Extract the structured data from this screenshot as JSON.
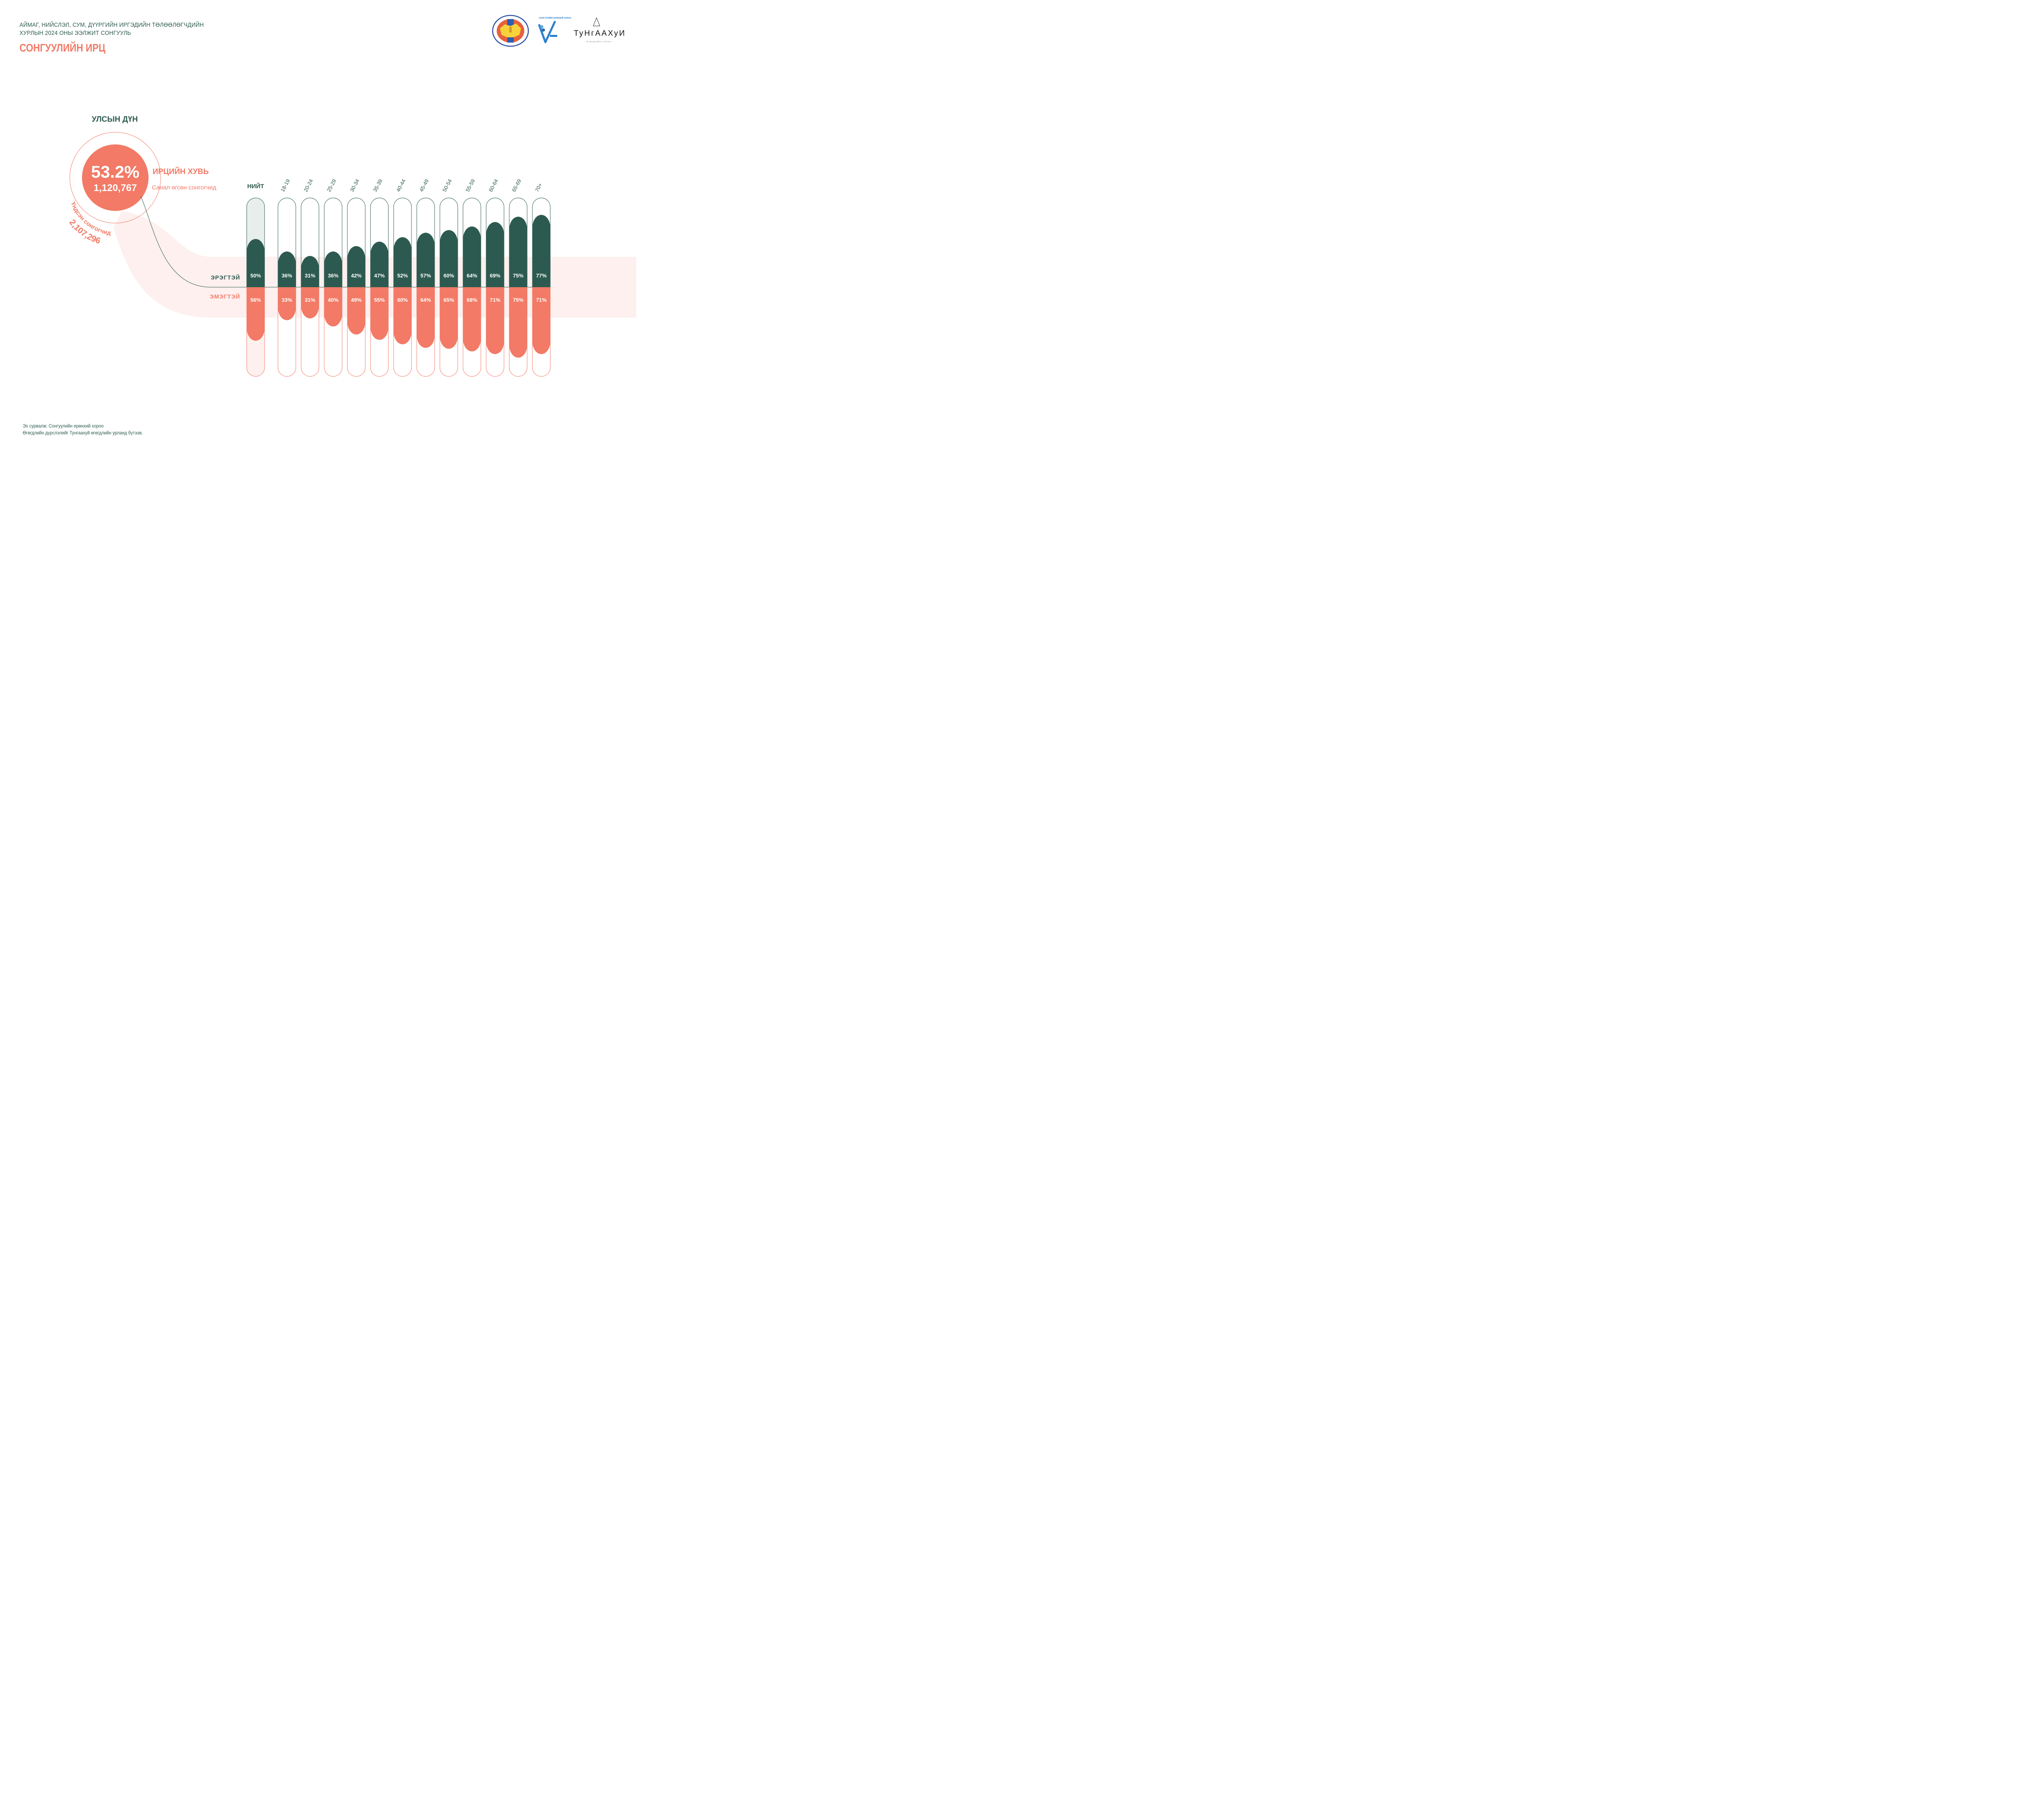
{
  "header": {
    "subtitle_line1": "АЙМАГ, НИЙСЛЭЛ, СУМ, ДҮҮРГИЙН ИРГЭДИЙН ТӨЛӨӨЛӨГЧДИЙН",
    "subtitle_line2": "ХУРЛЫН 2024 ОНЫ ЭЭЛЖИТ СОНГУУЛЬ",
    "title": "СОНГУУЛИЙН ИРЦ"
  },
  "logos": {
    "gec_seal": "general-election-commission-seal",
    "gec_seal_text_top": "СОНГУУЛИЙН ЕРӨНХИЙ ХОРОО",
    "gec_seal_text_bottom": "GENERAL ELECTION COMMISSION OF MONGOLIA",
    "center_title": "СОНГУУЛИЙН ЕРӨНХИЙ ХОРОО",
    "center_caption": "МЭДЭЭЛЭЛ, СУДАЛГАА, СУРГАЛТЫН ТӨВ",
    "tungaakhui_name": "ТуНгААХуИ",
    "tungaakhui_tagline": "- ӨГӨГДЛИЙН УРЛАН -"
  },
  "summary": {
    "section_title": "УЛСЫН ДҮН",
    "turnout_pct": "53.2%",
    "voters_cast": "1,120,767",
    "turnout_label": "ИРЦИЙН ХУВЬ",
    "voters_cast_label": "Санал өгсөн сонгогчид",
    "registered_label": "Үндсэн сонгогчид",
    "registered_voters": "2,107,296"
  },
  "colors": {
    "male": "#2d5a50",
    "female": "#f27a66",
    "band": "#fdf0ef",
    "total_track": "#e8eeec"
  },
  "chart_data": {
    "type": "bar",
    "title": "СОНГУУЛИЙН ИРЦ",
    "description": "Voter turnout by age group and sex (diverging bars from a shared baseline)",
    "row_labels": {
      "male": "ЭРЭГТЭЙ",
      "female": "ЭМЭГТЭЙ"
    },
    "categories": [
      "НИЙТ",
      "18-19",
      "20-24",
      "25-29",
      "30-34",
      "35-39",
      "40-44",
      "45-49",
      "50-54",
      "55-59",
      "60-64",
      "65-69",
      "70+"
    ],
    "series": [
      {
        "name": "ЭРЭГТЭЙ",
        "direction": "up",
        "values": [
          50,
          36,
          31,
          36,
          42,
          47,
          52,
          57,
          60,
          64,
          69,
          75,
          77
        ]
      },
      {
        "name": "ЭМЭГТЭЙ",
        "direction": "down",
        "values": [
          56,
          33,
          31,
          40,
          49,
          55,
          60,
          64,
          65,
          68,
          71,
          75,
          71
        ]
      }
    ],
    "unit": "%",
    "ylim": [
      0,
      100
    ],
    "grid": false
  },
  "footer": {
    "source": "Эх сурвалж: Сонгуулийн ерөнхий хороо",
    "credit": "Өгөгдлийн дүрслэлийг Тунгаахуй өгөгдлийн урланд бүтээв."
  }
}
